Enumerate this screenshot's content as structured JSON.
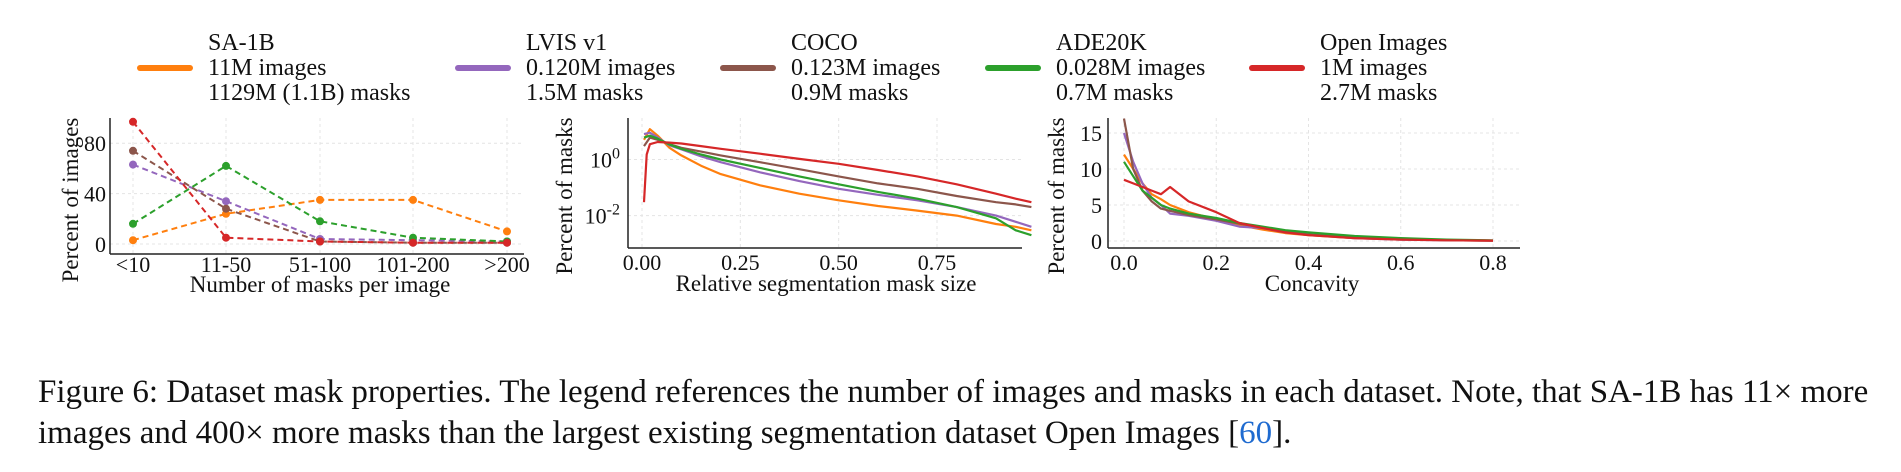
{
  "legend": [
    {
      "name": "SA-1B",
      "images": "11M images",
      "masks": "1129M (1.1B) masks",
      "color": "#ff7f0e"
    },
    {
      "name": "LVIS v1",
      "images": "0.120M images",
      "masks": "1.5M masks",
      "color": "#9467bd"
    },
    {
      "name": "COCO",
      "images": "0.123M images",
      "masks": "0.9M masks",
      "color": "#8c564b"
    },
    {
      "name": "ADE20K",
      "images": "0.028M images",
      "masks": "0.7M masks",
      "color": "#2ca02c"
    },
    {
      "name": "Open Images",
      "images": "1M images",
      "masks": "2.7M masks",
      "color": "#d62728"
    }
  ],
  "chart_data": [
    {
      "type": "line",
      "xlabel": "Number of masks per image",
      "ylabel": "Percent of images",
      "categories": [
        "<10",
        "11-50",
        "51-100",
        "101-200",
        ">200"
      ],
      "yticks": [
        "0",
        "40",
        "80"
      ],
      "ylim": [
        0,
        100
      ],
      "grid": true,
      "line_style": "dashed",
      "series": [
        {
          "name": "SA-1B",
          "color": "#ff7f0e",
          "values": [
            3,
            24,
            35,
            35,
            10
          ]
        },
        {
          "name": "LVIS v1",
          "color": "#9467bd",
          "values": [
            63,
            34,
            4,
            3,
            2
          ]
        },
        {
          "name": "COCO",
          "color": "#8c564b",
          "values": [
            74,
            28,
            2,
            1,
            1
          ]
        },
        {
          "name": "ADE20K",
          "color": "#2ca02c",
          "values": [
            16,
            62,
            18,
            5,
            2
          ]
        },
        {
          "name": "Open Images",
          "color": "#d62728",
          "values": [
            97,
            5,
            2,
            1,
            1
          ]
        }
      ]
    },
    {
      "type": "line",
      "xlabel": "Relative segmentation mask size",
      "ylabel": "Percent of masks",
      "yscale": "log",
      "xticks": [
        "0.00",
        "0.25",
        "0.50",
        "0.75"
      ],
      "yticks": [
        "10^0",
        "10^-2"
      ],
      "xlim": [
        0,
        1
      ],
      "ylim": [
        0.0007,
        30
      ],
      "grid": true,
      "series": [
        {
          "name": "SA-1B",
          "color": "#ff7f0e",
          "x": [
            0.005,
            0.02,
            0.04,
            0.07,
            0.1,
            0.15,
            0.2,
            0.3,
            0.4,
            0.5,
            0.6,
            0.7,
            0.8,
            0.9,
            0.95,
            0.99
          ],
          "y": [
            5,
            12,
            7,
            2.6,
            1.4,
            0.6,
            0.3,
            0.12,
            0.06,
            0.035,
            0.022,
            0.015,
            0.01,
            0.005,
            0.004,
            0.003
          ]
        },
        {
          "name": "LVIS v1",
          "color": "#9467bd",
          "x": [
            0.005,
            0.02,
            0.04,
            0.07,
            0.1,
            0.15,
            0.2,
            0.3,
            0.4,
            0.5,
            0.6,
            0.7,
            0.8,
            0.9,
            0.95,
            0.99
          ],
          "y": [
            8,
            9,
            6,
            3.2,
            2.3,
            1.3,
            0.8,
            0.35,
            0.17,
            0.09,
            0.055,
            0.035,
            0.02,
            0.01,
            0.006,
            0.004
          ]
        },
        {
          "name": "COCO",
          "color": "#8c564b",
          "x": [
            0.005,
            0.02,
            0.04,
            0.07,
            0.1,
            0.15,
            0.2,
            0.3,
            0.4,
            0.5,
            0.6,
            0.7,
            0.8,
            0.9,
            0.95,
            0.99
          ],
          "y": [
            3,
            6,
            5,
            3.5,
            2.6,
            1.9,
            1.4,
            0.8,
            0.45,
            0.25,
            0.14,
            0.09,
            0.05,
            0.03,
            0.025,
            0.02
          ]
        },
        {
          "name": "ADE20K",
          "color": "#2ca02c",
          "x": [
            0.005,
            0.02,
            0.04,
            0.07,
            0.1,
            0.15,
            0.2,
            0.3,
            0.4,
            0.5,
            0.6,
            0.7,
            0.8,
            0.9,
            0.95,
            0.99
          ],
          "y": [
            6,
            7,
            5.5,
            3.4,
            2.4,
            1.5,
            1,
            0.5,
            0.25,
            0.13,
            0.07,
            0.04,
            0.02,
            0.008,
            0.003,
            0.002
          ]
        },
        {
          "name": "Open Images",
          "color": "#d62728",
          "x": [
            0.005,
            0.012,
            0.02,
            0.04,
            0.07,
            0.1,
            0.15,
            0.2,
            0.3,
            0.4,
            0.5,
            0.6,
            0.7,
            0.8,
            0.9,
            0.95,
            0.99
          ],
          "y": [
            0.03,
            1.5,
            3.5,
            4.2,
            4,
            3.7,
            3,
            2.4,
            1.6,
            1.05,
            0.7,
            0.42,
            0.25,
            0.13,
            0.06,
            0.04,
            0.03
          ]
        }
      ]
    },
    {
      "type": "line",
      "xlabel": "Concavity",
      "ylabel": "Percent of masks",
      "xticks": [
        "0.0",
        "0.2",
        "0.4",
        "0.6",
        "0.8"
      ],
      "yticks": [
        "0",
        "5",
        "10",
        "15"
      ],
      "xlim": [
        -0.02,
        0.86
      ],
      "ylim": [
        -0.5,
        17.5
      ],
      "grid": true,
      "series": [
        {
          "name": "SA-1B",
          "color": "#ff7f0e",
          "x": [
            0,
            0.02,
            0.04,
            0.06,
            0.08,
            0.1,
            0.14,
            0.2,
            0.25,
            0.3,
            0.35,
            0.4,
            0.5,
            0.6,
            0.7,
            0.8
          ],
          "y": [
            12,
            10,
            8,
            6.5,
            5.8,
            5,
            4,
            3,
            2.2,
            1.6,
            1.1,
            0.8,
            0.4,
            0.25,
            0.1,
            0.05
          ]
        },
        {
          "name": "LVIS v1",
          "color": "#9467bd",
          "x": [
            0,
            0.02,
            0.04,
            0.06,
            0.08,
            0.1,
            0.14,
            0.2,
            0.25,
            0.3,
            0.35,
            0.4,
            0.5,
            0.6,
            0.7,
            0.8
          ],
          "y": [
            15,
            11,
            8,
            6,
            5,
            3.8,
            3.5,
            2.8,
            2,
            1.8,
            1.2,
            0.9,
            0.4,
            0.2,
            0.1,
            0.05
          ]
        },
        {
          "name": "COCO",
          "color": "#8c564b",
          "x": [
            0,
            0.02,
            0.04,
            0.06,
            0.08,
            0.1,
            0.14,
            0.2,
            0.25,
            0.3,
            0.35,
            0.4,
            0.5,
            0.6,
            0.7,
            0.8
          ],
          "y": [
            17,
            10,
            7,
            5.5,
            4.5,
            4.2,
            3.6,
            3,
            2.4,
            1.9,
            1.3,
            0.9,
            0.5,
            0.3,
            0.12,
            0.05
          ]
        },
        {
          "name": "ADE20K",
          "color": "#2ca02c",
          "x": [
            0,
            0.02,
            0.04,
            0.06,
            0.08,
            0.1,
            0.14,
            0.2,
            0.25,
            0.3,
            0.35,
            0.4,
            0.5,
            0.6,
            0.7,
            0.8
          ],
          "y": [
            11,
            9,
            7,
            6,
            5,
            4.5,
            3.8,
            3.2,
            2.5,
            2,
            1.5,
            1.2,
            0.7,
            0.4,
            0.2,
            0.08
          ]
        },
        {
          "name": "Open Images",
          "color": "#d62728",
          "x": [
            0,
            0.02,
            0.04,
            0.06,
            0.08,
            0.1,
            0.14,
            0.2,
            0.25,
            0.3,
            0.35,
            0.4,
            0.5,
            0.6,
            0.7,
            0.8
          ],
          "y": [
            8.5,
            8,
            7.5,
            7,
            6.5,
            7.5,
            5.5,
            4,
            2.5,
            1.8,
            1.2,
            0.8,
            0.4,
            0.2,
            0.1,
            0.05
          ]
        }
      ]
    }
  ],
  "caption": {
    "main": "Figure 6: Dataset mask properties. The legend references the number of images and masks in each dataset. Note, that SA-1B has 11× more images and 400× more masks than the largest existing segmentation dataset Open Images [",
    "ref": "60",
    "end": "]."
  }
}
